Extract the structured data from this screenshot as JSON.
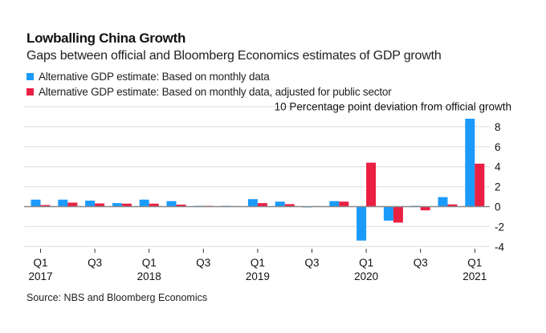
{
  "chart_data": {
    "type": "bar",
    "title": "Lowballing China Growth",
    "subtitle": "Gaps between official and Bloomberg Economics estimates of GDP growth",
    "ylabel": "Percentage point deviation from official growth",
    "ylim": [
      -4,
      10
    ],
    "yticks": [
      10,
      8,
      6,
      4,
      2,
      0,
      -2,
      -4
    ],
    "grid": true,
    "legend_position": "top-left",
    "categories": [
      "Q1 2017",
      "Q2 2017",
      "Q3 2017",
      "Q4 2017",
      "Q1 2018",
      "Q2 2018",
      "Q3 2018",
      "Q4 2018",
      "Q1 2019",
      "Q2 2019",
      "Q3 2019",
      "Q4 2019",
      "Q1 2020",
      "Q2 2020",
      "Q3 2020",
      "Q4 2020",
      "Q1 2021"
    ],
    "xtick_labels": [
      {
        "index": 0,
        "quarter": "Q1",
        "year": "2017"
      },
      {
        "index": 2,
        "quarter": "Q3",
        "year": ""
      },
      {
        "index": 4,
        "quarter": "Q1",
        "year": "2018"
      },
      {
        "index": 6,
        "quarter": "Q3",
        "year": ""
      },
      {
        "index": 8,
        "quarter": "Q1",
        "year": "2019"
      },
      {
        "index": 10,
        "quarter": "Q3",
        "year": ""
      },
      {
        "index": 12,
        "quarter": "Q1",
        "year": "2020"
      },
      {
        "index": 14,
        "quarter": "Q3",
        "year": ""
      },
      {
        "index": 16,
        "quarter": "Q1",
        "year": "2021"
      }
    ],
    "series": [
      {
        "name": "Alternative GDP estimate: Based on monthly data",
        "color": "#1a9bfc",
        "values": [
          0.7,
          0.7,
          0.6,
          0.35,
          0.7,
          0.55,
          0.08,
          0.08,
          0.75,
          0.5,
          -0.05,
          0.55,
          -3.4,
          -1.4,
          0.08,
          0.95,
          8.8
        ]
      },
      {
        "name": "Alternative GDP estimate: Based on monthly data, adjusted for public sector",
        "color": "#ea1f42",
        "values": [
          0.16,
          0.4,
          0.32,
          0.3,
          0.3,
          0.2,
          0.08,
          0.05,
          0.35,
          0.25,
          0.05,
          0.5,
          4.4,
          -1.6,
          -0.37,
          0.22,
          4.3
        ]
      }
    ]
  },
  "labels": {
    "title": "Lowballing China Growth",
    "subtitle": "Gaps between official and Bloomberg Economics estimates of GDP growth",
    "legend": [
      "Alternative GDP estimate: Based on monthly data",
      "Alternative GDP estimate: Based on monthly data, adjusted for public sector"
    ],
    "unit": "Percentage point deviation from official growth",
    "source": "Source: NBS and Bloomberg Economics"
  },
  "colors": {
    "blue": "#1a9bfc",
    "red": "#ea1f42",
    "grid": "#e6e6e6",
    "zero": "#888888"
  }
}
